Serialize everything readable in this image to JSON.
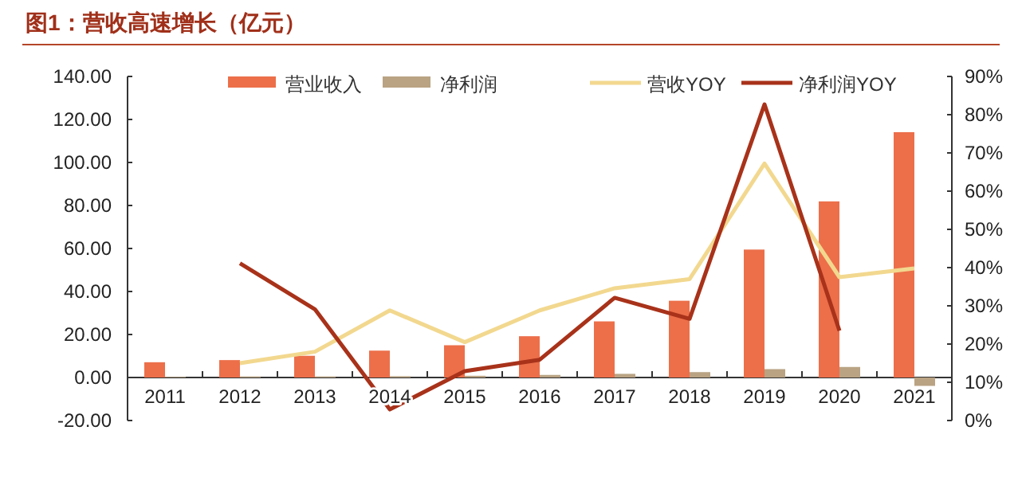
{
  "chart_data": {
    "type": "bar",
    "title": "图1：营收高速增长（亿元）",
    "categories": [
      "2011",
      "2012",
      "2013",
      "2014",
      "2015",
      "2016",
      "2017",
      "2018",
      "2019",
      "2020",
      "2021"
    ],
    "series": [
      {
        "name": "营业收入",
        "color": "#ec6f4a",
        "values": [
          7.1,
          8.1,
          10.1,
          12.5,
          15.0,
          19.2,
          26.1,
          35.7,
          59.5,
          81.9,
          114.1
        ]
      },
      {
        "name": "净利润",
        "color": "#b9a383",
        "values": [
          0.3,
          0.5,
          0.5,
          0.6,
          0.8,
          1.2,
          1.7,
          2.5,
          3.9,
          4.9,
          -3.9
        ]
      },
      {
        "name": "营收YOY",
        "type": "line",
        "axis": "y2",
        "color": "#f2d88f",
        "values": [
          null,
          15.0,
          18.0,
          28.8,
          20.5,
          28.8,
          34.6,
          37.0,
          67.2,
          37.5,
          39.8
        ]
      },
      {
        "name": "净利润YOY",
        "type": "line",
        "axis": "y2",
        "color": "#a8321a",
        "values": [
          null,
          41.1,
          29.1,
          2.9,
          12.9,
          15.9,
          32.1,
          26.6,
          82.7,
          23.5,
          null
        ]
      }
    ],
    "ylim": [
      -20,
      140
    ],
    "yticks": [
      {
        "value": -20,
        "label": "-20.00"
      },
      {
        "value": 0,
        "label": "0.00"
      },
      {
        "value": 20,
        "label": "20.00"
      },
      {
        "value": 40,
        "label": "40.00"
      },
      {
        "value": 60,
        "label": "60.00"
      },
      {
        "value": 80,
        "label": "80.00"
      },
      {
        "value": 100,
        "label": "100.00"
      },
      {
        "value": 120,
        "label": "120.00"
      },
      {
        "value": 140,
        "label": "140.00"
      }
    ],
    "y2lim": [
      0,
      90
    ],
    "y2ticks": [
      {
        "value": 0,
        "label": "0%"
      },
      {
        "value": 10,
        "label": "10%"
      },
      {
        "value": 20,
        "label": "20%"
      },
      {
        "value": 30,
        "label": "30%"
      },
      {
        "value": 40,
        "label": "40%"
      },
      {
        "value": 50,
        "label": "50%"
      },
      {
        "value": 60,
        "label": "60%"
      },
      {
        "value": 70,
        "label": "70%"
      },
      {
        "value": 80,
        "label": "80%"
      },
      {
        "value": 90,
        "label": "90%"
      }
    ],
    "legend": "top",
    "grid": false
  }
}
